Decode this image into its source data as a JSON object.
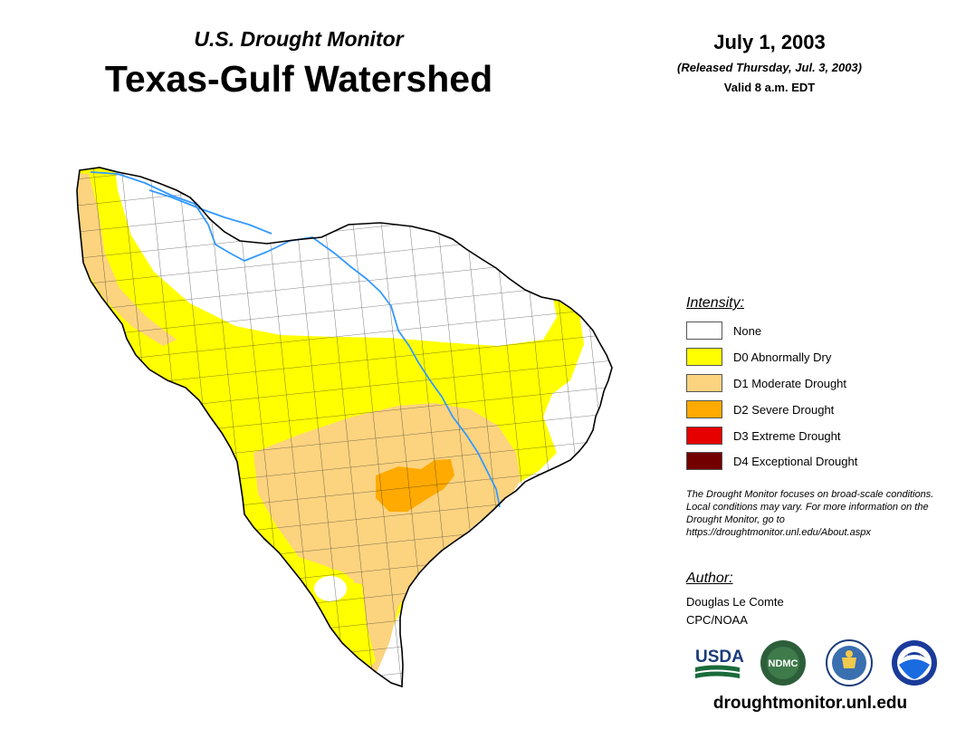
{
  "header": {
    "subtitle": "U.S. Drought Monitor",
    "title": "Texas-Gulf Watershed"
  },
  "date_block": {
    "date": "July 1, 2003",
    "released": "(Released Thursday, Jul. 3, 2003)",
    "valid": "Valid 8 a.m. EDT"
  },
  "legend": {
    "title": "Intensity:",
    "items": [
      {
        "label": "None",
        "color": "#ffffff"
      },
      {
        "label": "D0 Abnormally Dry",
        "color": "#ffff00"
      },
      {
        "label": "D1 Moderate Drought",
        "color": "#fcd37f"
      },
      {
        "label": "D2 Severe Drought",
        "color": "#ffaa00"
      },
      {
        "label": "D3 Extreme Drought",
        "color": "#e60000"
      },
      {
        "label": "D4 Exceptional Drought",
        "color": "#730000"
      }
    ]
  },
  "note": "The Drought Monitor focuses on broad-scale conditions. Local conditions may vary. For more information on the Drought Monitor, go to https://droughtmonitor.unl.edu/About.aspx",
  "author": {
    "title": "Author:",
    "name": "Douglas Le Comte",
    "org": "CPC/NOAA"
  },
  "logos": {
    "usda": "USDA",
    "ndmc": "NDMC",
    "noaa": "NOAA"
  },
  "website": "droughtmonitor.unl.edu",
  "colors": {
    "river": "#3399ff",
    "county_lines": "#222222"
  }
}
